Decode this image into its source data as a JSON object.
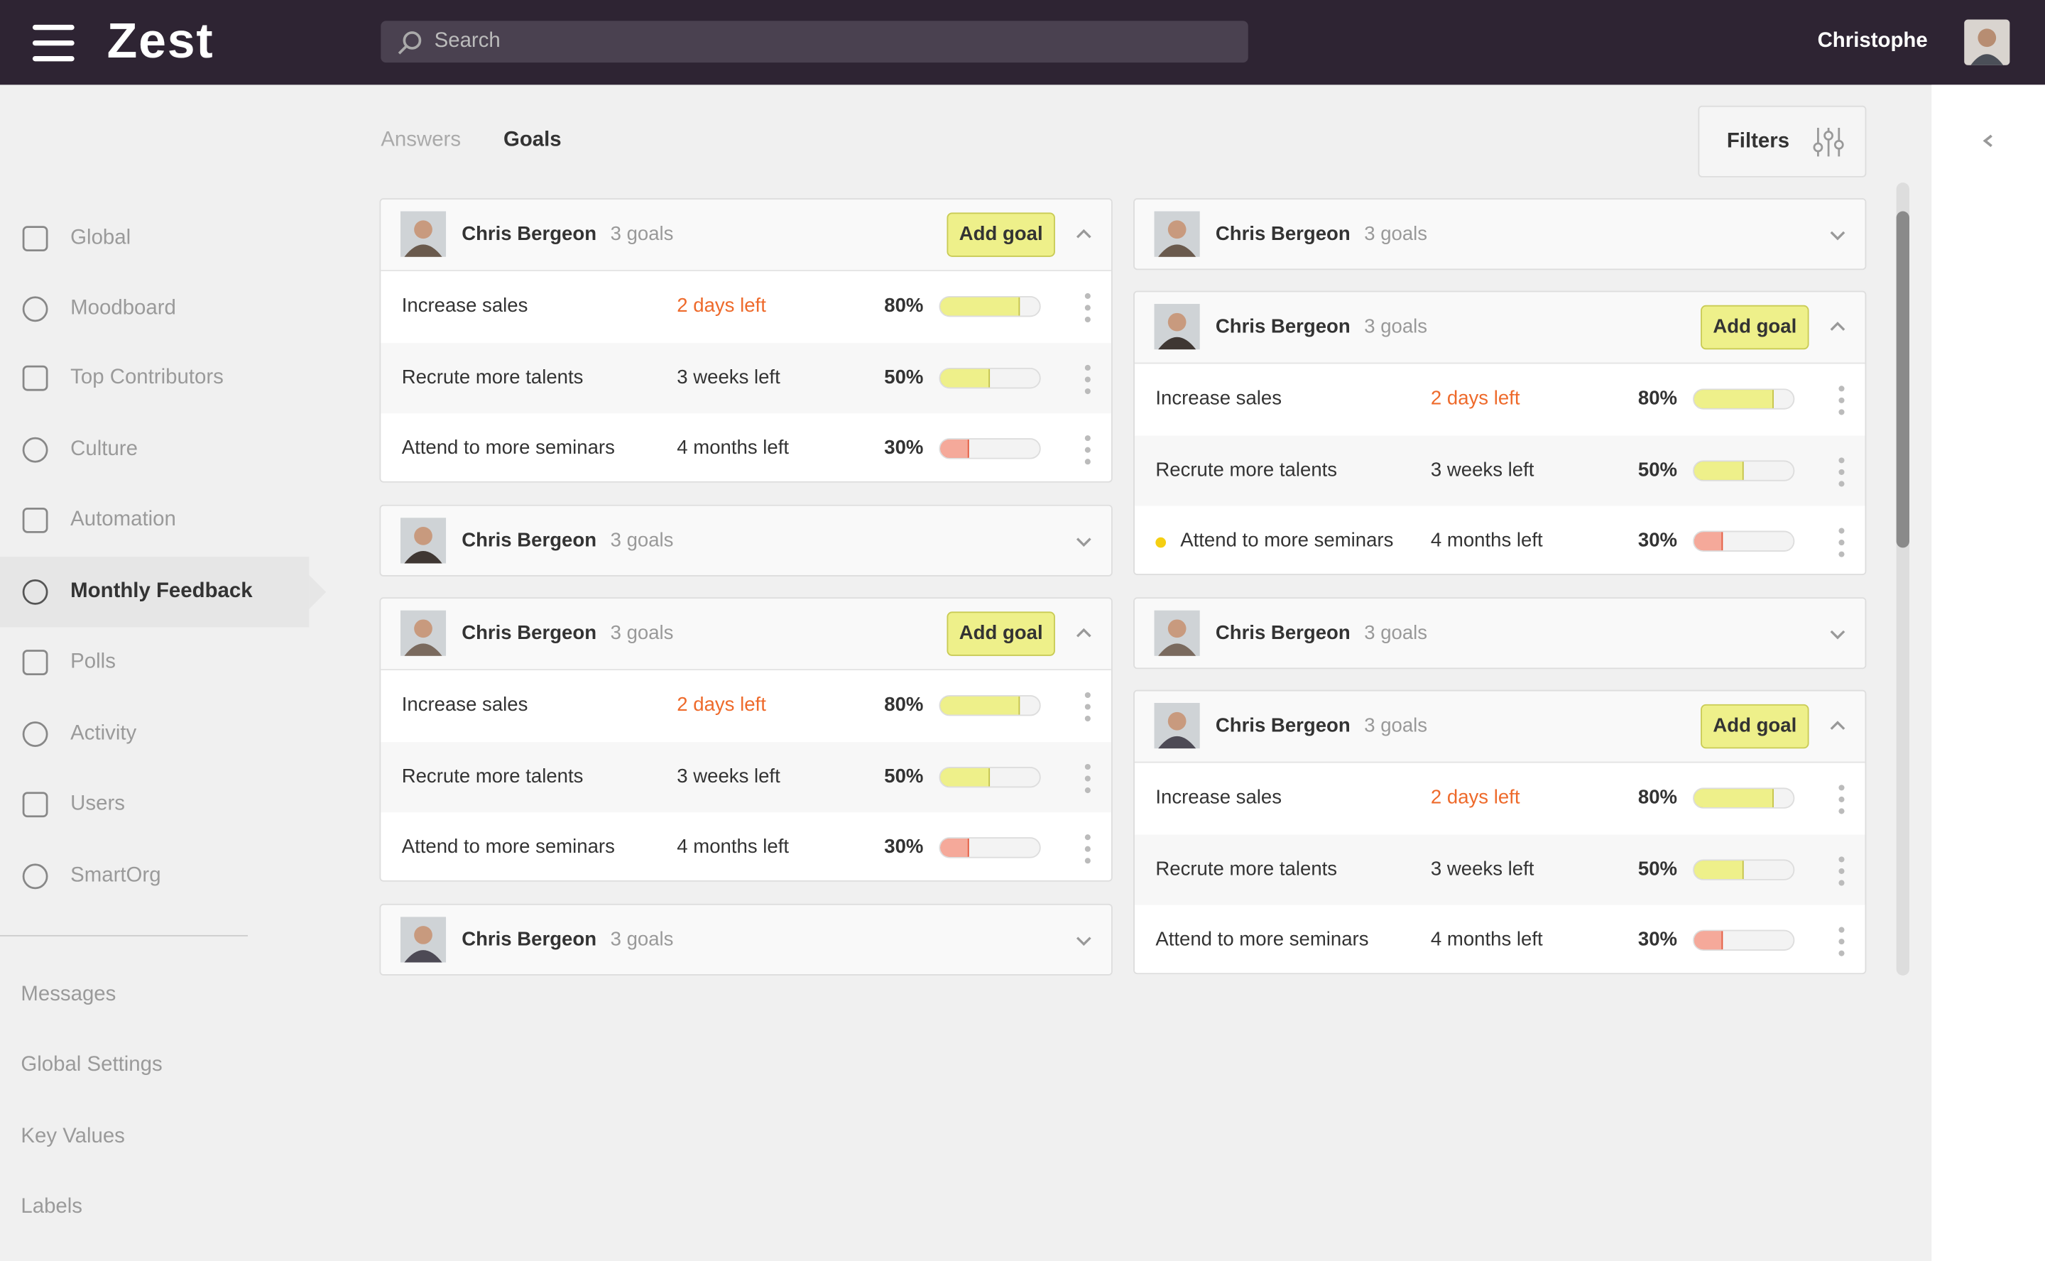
{
  "header": {
    "logo": "Zest",
    "search_placeholder": "Search",
    "user": "Christophe"
  },
  "tabs": [
    "Answers",
    "Goals"
  ],
  "filters": "Filters",
  "sidebar": {
    "items": [
      "Global",
      "Moodboard",
      "Top Contributors",
      "Culture",
      "Automation",
      "Monthly Feedback",
      "Polls",
      "Activity",
      "Users",
      "SmartOrg"
    ],
    "active": "Monthly Feedback",
    "secondary": [
      "Messages",
      "Global Settings",
      "Key Values",
      "Labels"
    ]
  },
  "columns": [
    [
      {
        "name": "Chris Bergeon",
        "goals_count": "3 goals",
        "action": "Add goal",
        "goals": [
          {
            "title": "Increase sales",
            "deadline": "2 days left",
            "urgent": true,
            "percent": "80%"
          },
          {
            "title": "Recrute more talents",
            "deadline": "3 weeks left",
            "percent": "50%"
          },
          {
            "title": "Attend to more seminars",
            "deadline": "4 months left",
            "percent": "30%"
          }
        ]
      },
      {
        "name": "Chris Bergeon",
        "goals_count": "3 goals"
      },
      {
        "name": "Chris Bergeon",
        "goals_count": "3 goals",
        "action": "Add goal",
        "goals": [
          {
            "title": "Increase sales",
            "deadline": "2 days left",
            "urgent": true,
            "percent": "80%"
          },
          {
            "title": "Recrute more talents",
            "deadline": "3 weeks left",
            "percent": "50%"
          },
          {
            "title": "Attend to more seminars",
            "deadline": "4 months left",
            "percent": "30%"
          }
        ]
      },
      {
        "name": "Chris Bergeon",
        "goals_count": "3 goals"
      }
    ],
    [
      {
        "name": "Chris Bergeon",
        "goals_count": "3 goals"
      },
      {
        "name": "Chris Bergeon",
        "goals_count": "3 goals",
        "action": "Add goal",
        "goals": [
          {
            "title": "Increase sales",
            "deadline": "2 days left",
            "urgent": true,
            "percent": "80%"
          },
          {
            "title": "Recrute more talents",
            "deadline": "3 weeks left",
            "percent": "50%"
          },
          {
            "title": "Attend to more seminars",
            "deadline": "4 months left",
            "percent": "30%",
            "flag": true
          }
        ]
      },
      {
        "name": "Chris Bergeon",
        "goals_count": "3 goals"
      },
      {
        "name": "Chris Bergeon",
        "goals_count": "3 goals",
        "action": "Add goal",
        "goals": [
          {
            "title": "Increase sales",
            "deadline": "2 days left",
            "urgent": true,
            "percent": "80%"
          },
          {
            "title": "Recrute more talents",
            "deadline": "3 weeks left",
            "percent": "50%"
          },
          {
            "title": "Attend to more seminars",
            "deadline": "4 months left",
            "percent": "30%"
          }
        ]
      }
    ]
  ]
}
